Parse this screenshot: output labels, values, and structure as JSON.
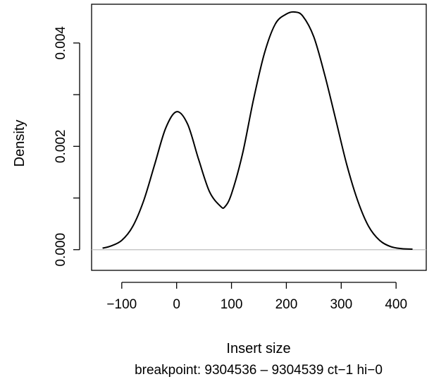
{
  "chart_data": {
    "type": "line",
    "title": "",
    "xlabel": "Insert size",
    "ylabel": "Density",
    "caption": "breakpoint: 9304536 – 9304539 ct−1 hi−0",
    "xlim": [
      -155,
      455
    ],
    "ylim": [
      -0.0004,
      0.00475
    ],
    "x_ticks": [
      -100,
      0,
      100,
      200,
      300,
      400
    ],
    "x_tick_labels": [
      "−100",
      "0",
      "100",
      "200",
      "300",
      "400"
    ],
    "y_ticks": [
      0,
      0.001,
      0.002,
      0.003,
      0.004
    ],
    "y_tick_labels": [
      "0.000",
      "",
      "0.002",
      "",
      "0.004"
    ],
    "baseline": 0,
    "grid": false,
    "series": [
      {
        "color": "#000000",
        "x": [
          -135,
          -120,
          -100,
          -80,
          -60,
          -40,
          -20,
          0,
          20,
          40,
          60,
          80,
          88,
          100,
          120,
          140,
          160,
          180,
          200,
          215,
          230,
          250,
          270,
          290,
          310,
          330,
          350,
          370,
          390,
          410,
          430
        ],
        "y": [
          3e-05,
          7e-05,
          0.00018,
          0.00045,
          0.00095,
          0.00165,
          0.00235,
          0.00267,
          0.00243,
          0.00175,
          0.00112,
          0.00084,
          0.00083,
          0.00108,
          0.00185,
          0.0029,
          0.0038,
          0.00437,
          0.00456,
          0.0046,
          0.00452,
          0.00412,
          0.00338,
          0.00252,
          0.00165,
          0.00095,
          0.00045,
          0.00018,
          6e-05,
          2e-05,
          1e-05
        ]
      }
    ]
  }
}
